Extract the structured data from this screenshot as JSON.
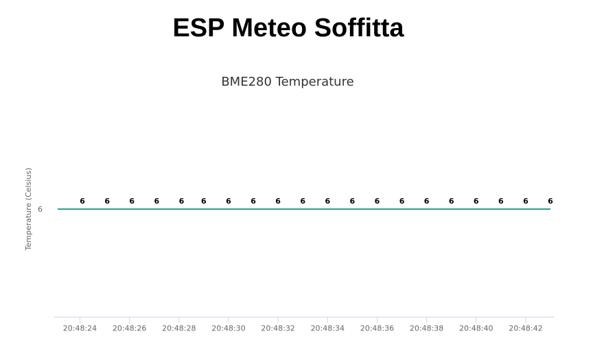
{
  "page": {
    "title": "ESP Meteo Soffitta"
  },
  "chart_data": {
    "type": "line",
    "title": "BME280 Temperature",
    "xlabel": "",
    "ylabel": "Temperature (Celsius)",
    "x_tick_labels": [
      "20:48:24",
      "20:48:26",
      "20:48:28",
      "20:48:30",
      "20:48:32",
      "20:48:34",
      "20:48:36",
      "20:48:38",
      "20:48:40",
      "20:48:42"
    ],
    "y_tick_labels": [
      "6"
    ],
    "series": [
      {
        "color": "#2a9d8f",
        "x": [
          "20:48:23.1",
          "20:48:24.1",
          "20:48:25.1",
          "20:48:26.1",
          "20:48:27.1",
          "20:48:28.1",
          "20:48:29.0",
          "20:48:30.0",
          "20:48:31.0",
          "20:48:32.0",
          "20:48:33.0",
          "20:48:34.0",
          "20:48:35.0",
          "20:48:36.0",
          "20:48:37.0",
          "20:48:38.0",
          "20:48:39.0",
          "20:48:40.0",
          "20:48:41.0",
          "20:48:42.0",
          "20:48:43.0"
        ],
        "values": [
          6,
          6,
          6,
          6,
          6,
          6,
          6,
          6,
          6,
          6,
          6,
          6,
          6,
          6,
          6,
          6,
          6,
          6,
          6,
          6,
          6
        ],
        "data_labels": [
          "",
          "6",
          "6",
          "6",
          "6",
          "6",
          "6",
          "6",
          "6",
          "6",
          "6",
          "6",
          "6",
          "6",
          "6",
          "6",
          "6",
          "6",
          "6",
          "6",
          "6"
        ]
      }
    ],
    "grid": false,
    "legend": "none"
  }
}
